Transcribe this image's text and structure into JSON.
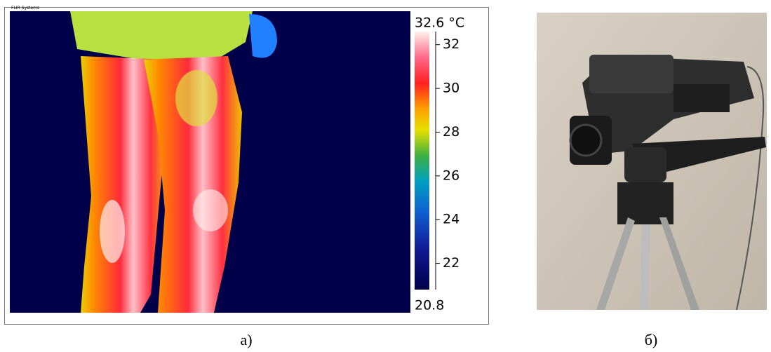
{
  "panel_a": {
    "watermark": "FLIR Systems",
    "scale": {
      "max": {
        "value": 32.6,
        "label": "32.6 °C"
      },
      "min": 20.8,
      "ticks": [
        32,
        30,
        28,
        26,
        24,
        22
      ]
    },
    "caption": "а)"
  },
  "panel_b": {
    "caption": "б)"
  }
}
